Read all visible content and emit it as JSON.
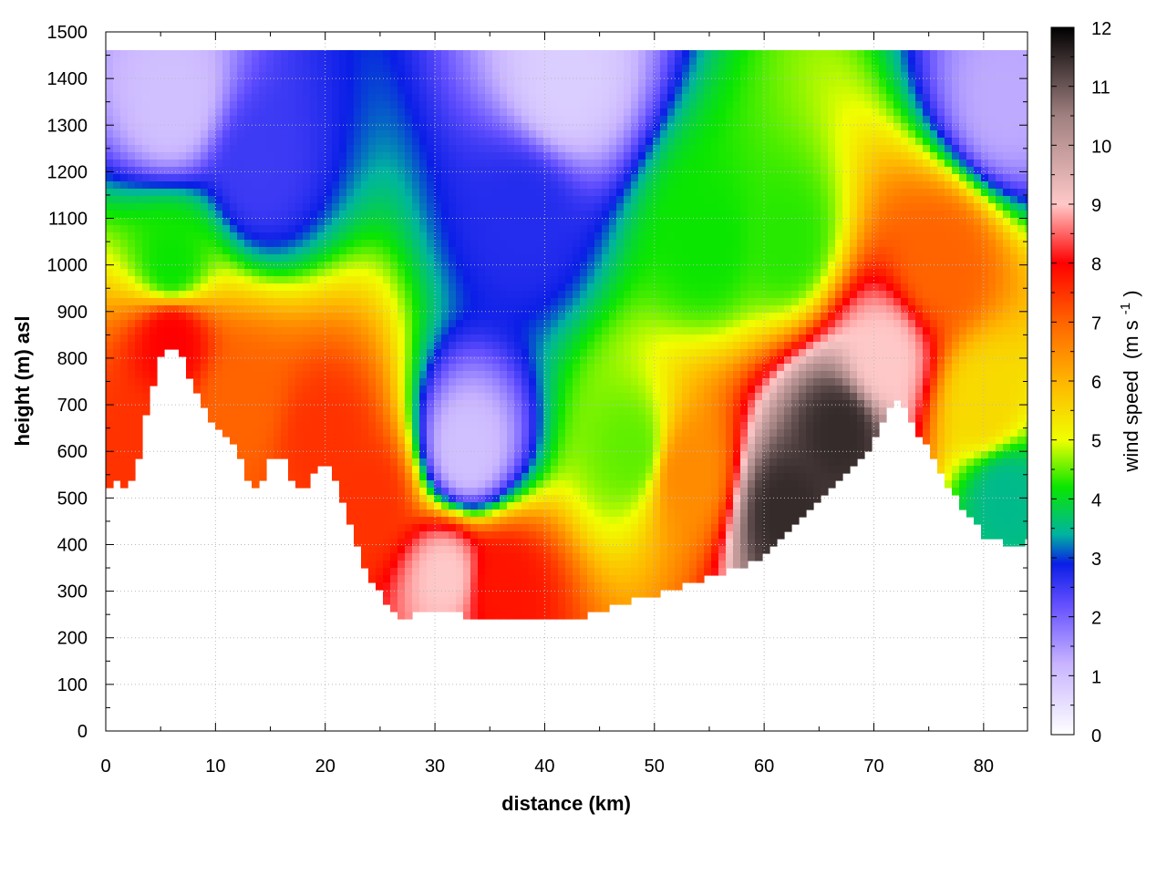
{
  "chart_data": {
    "type": "heatmap",
    "title": "",
    "xlabel": "distance (km)",
    "ylabel": "height (m) asl",
    "xlim": [
      0,
      84
    ],
    "ylim": [
      0,
      1500
    ],
    "x_ticks": [
      "0",
      "10",
      "20",
      "30",
      "40",
      "50",
      "60",
      "70",
      "80"
    ],
    "y_ticks": [
      "0",
      "100",
      "200",
      "300",
      "400",
      "500",
      "600",
      "700",
      "800",
      "900",
      "1000",
      "1100",
      "1200",
      "1300",
      "1400",
      "1500"
    ],
    "grid": true,
    "colorbar": {
      "label": "wind speed",
      "unit_prefix": "(m s",
      "unit_exp": "-1",
      "unit_suffix": ")",
      "range": [
        0,
        12
      ],
      "ticks": [
        "0",
        "1",
        "2",
        "3",
        "4",
        "5",
        "6",
        "7",
        "8",
        "9",
        "10",
        "11",
        "12"
      ],
      "colors": [
        {
          "v": 0,
          "c": "#ffffff"
        },
        {
          "v": 1.2,
          "c": "#c8b4ff"
        },
        {
          "v": 2.2,
          "c": "#6450ff"
        },
        {
          "v": 2.9,
          "c": "#0a1ee6"
        },
        {
          "v": 3.4,
          "c": "#00b4a0"
        },
        {
          "v": 4.2,
          "c": "#0ae600"
        },
        {
          "v": 5.0,
          "c": "#f0ff00"
        },
        {
          "v": 6.0,
          "c": "#ffb400"
        },
        {
          "v": 7.0,
          "c": "#ff6400"
        },
        {
          "v": 8.0,
          "c": "#ff0000"
        },
        {
          "v": 9.0,
          "c": "#ffc8c8"
        },
        {
          "v": 10.5,
          "c": "#a08080"
        },
        {
          "v": 12.0,
          "c": "#000000"
        }
      ]
    },
    "terrain": {
      "x": [
        0,
        1,
        2,
        3,
        4,
        5,
        6,
        7,
        8,
        9,
        10,
        11,
        12,
        13,
        14,
        15,
        16,
        17,
        18,
        19,
        20,
        21,
        22,
        23,
        24,
        25,
        26,
        27,
        28,
        29,
        30,
        32,
        34,
        36,
        38,
        40,
        42,
        44,
        46,
        48,
        50,
        52,
        54,
        56,
        57,
        58,
        60,
        62,
        64,
        66,
        68,
        70,
        72,
        74,
        76,
        78,
        80,
        82,
        84
      ],
      "height": [
        515,
        540,
        515,
        580,
        720,
        810,
        830,
        800,
        740,
        690,
        650,
        630,
        600,
        540,
        520,
        580,
        600,
        540,
        505,
        560,
        570,
        540,
        470,
        390,
        330,
        300,
        260,
        240,
        245,
        260,
        255,
        250,
        245,
        243,
        240,
        240,
        240,
        250,
        265,
        280,
        290,
        305,
        320,
        340,
        345,
        350,
        380,
        420,
        480,
        520,
        560,
        620,
        720,
        640,
        560,
        480,
        420,
        400,
        405
      ]
    },
    "field_samples": [
      {
        "x": 3,
        "y": 600,
        "speed": 7.5
      },
      {
        "x": 6,
        "y": 840,
        "speed": 8.0
      },
      {
        "x": 6,
        "y": 1000,
        "speed": 4.2
      },
      {
        "x": 6,
        "y": 1350,
        "speed": 1.0
      },
      {
        "x": 12,
        "y": 700,
        "speed": 7.0
      },
      {
        "x": 14,
        "y": 1200,
        "speed": 2.5
      },
      {
        "x": 20,
        "y": 620,
        "speed": 7.5
      },
      {
        "x": 24,
        "y": 500,
        "speed": 7.5
      },
      {
        "x": 31,
        "y": 330,
        "speed": 9.0
      },
      {
        "x": 36,
        "y": 310,
        "speed": 7.8
      },
      {
        "x": 33,
        "y": 600,
        "speed": 1.0
      },
      {
        "x": 38,
        "y": 1100,
        "speed": 2.7
      },
      {
        "x": 42,
        "y": 1400,
        "speed": 0.8
      },
      {
        "x": 48,
        "y": 600,
        "speed": 4.5
      },
      {
        "x": 53,
        "y": 550,
        "speed": 6.5
      },
      {
        "x": 55,
        "y": 1050,
        "speed": 4.2
      },
      {
        "x": 62,
        "y": 1050,
        "speed": 4.3
      },
      {
        "x": 62,
        "y": 470,
        "speed": 11.5
      },
      {
        "x": 67,
        "y": 640,
        "speed": 11.5
      },
      {
        "x": 71,
        "y": 800,
        "speed": 9.0
      },
      {
        "x": 76,
        "y": 1000,
        "speed": 7.0
      },
      {
        "x": 80,
        "y": 700,
        "speed": 5.5
      },
      {
        "x": 82,
        "y": 500,
        "speed": 3.5
      },
      {
        "x": 82,
        "y": 1350,
        "speed": 1.3
      }
    ]
  }
}
